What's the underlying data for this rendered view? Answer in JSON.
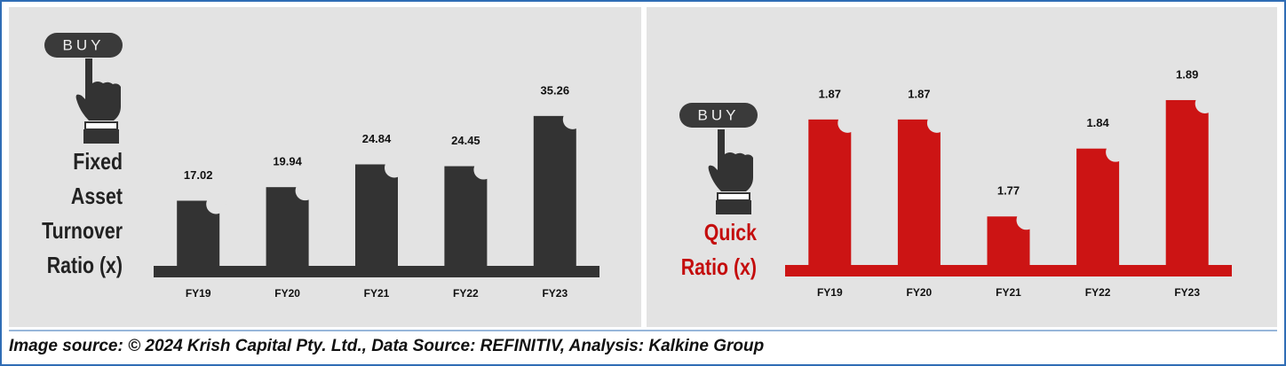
{
  "chart_data": [
    {
      "type": "bar",
      "title": "Fixed Asset Turnover Ratio (x)",
      "button_label": "BUY",
      "categories": [
        "FY19",
        "FY20",
        "FY21",
        "FY22",
        "FY23"
      ],
      "values": [
        17.02,
        19.94,
        24.84,
        24.45,
        35.26
      ],
      "color": "#333333",
      "ylim": [
        3,
        40
      ]
    },
    {
      "type": "bar",
      "title": "Quick Ratio (x)",
      "button_label": "BUY",
      "categories": [
        "FY19",
        "FY20",
        "FY21",
        "FY22",
        "FY23"
      ],
      "values": [
        1.87,
        1.87,
        1.77,
        1.84,
        1.89
      ],
      "color": "#cc1414",
      "ylim": [
        1.72,
        1.9
      ]
    }
  ],
  "footer": "Image source: © 2024 Krish Capital Pty. Ltd., Data Source: REFINITIV, Analysis: Kalkine Group"
}
